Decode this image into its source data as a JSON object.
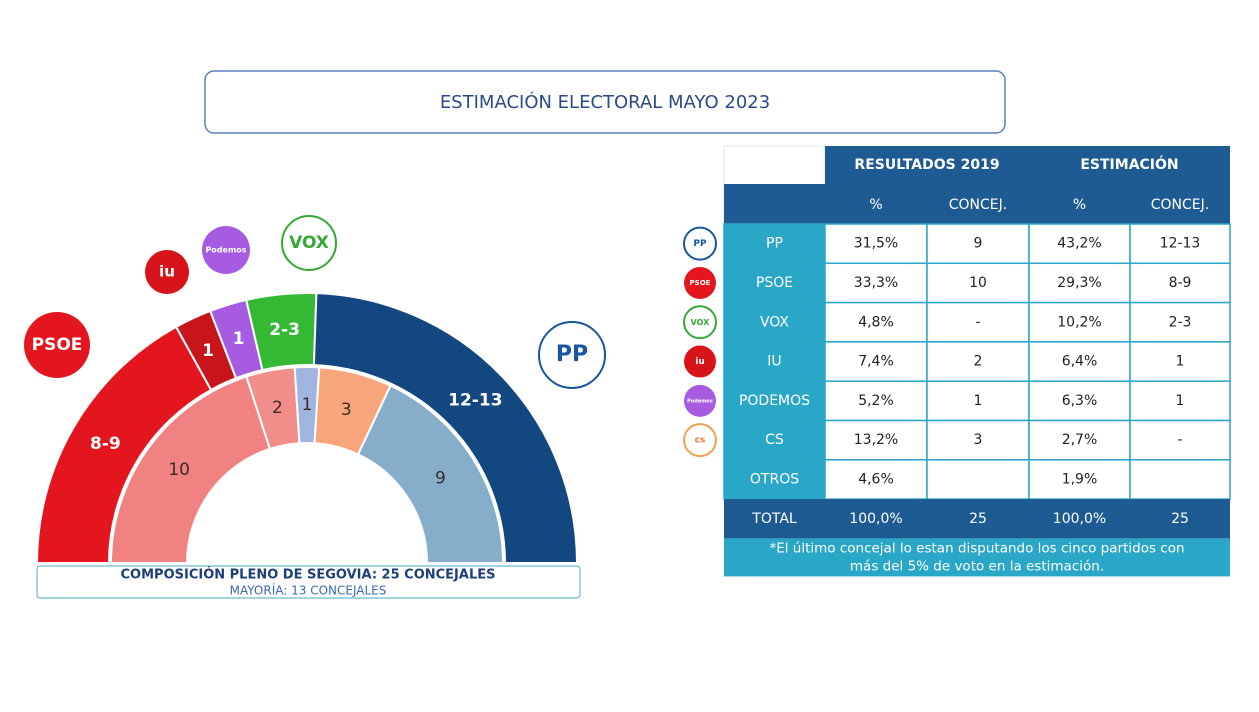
{
  "title": "ESTIMACIÓN ELECTORAL MAYO 2023",
  "logos": {
    "psoe": "PSOE",
    "iu": "iu",
    "podemos": "Podemos",
    "vox": "VOX",
    "pp": "PP",
    "cs": "cs"
  },
  "chart_data": {
    "type": "semicircle",
    "inner": {
      "values": [
        10,
        2,
        1,
        3,
        9
      ],
      "colors": [
        "#f08282",
        "#f28e8a",
        "#9fb5e0",
        "#f7a67c",
        "#86aecb"
      ]
    },
    "outer": {
      "labels": [
        "8-9",
        "1",
        "1",
        "2-3",
        "12-13"
      ],
      "colors": [
        "#e3161f",
        "#c8141b",
        "#a65be0",
        "#35b935",
        "#13477f"
      ]
    },
    "caption": "COMPOSICIÓN PLENO DE SEGOVIA: 25 CONCEJALES",
    "subcaption": "MAYORÍA: 13 CONCEJALES"
  },
  "table": {
    "group_headers": [
      "RESULTADOS 2019",
      "ESTIMACIÓN"
    ],
    "sub_headers": [
      "%",
      "CONCEJ.",
      "%",
      "CONCEJ."
    ],
    "rows": [
      [
        "PP",
        "31,5%",
        "9",
        "43,2%",
        "12-13"
      ],
      [
        "PSOE",
        "33,3%",
        "10",
        "29,3%",
        "8-9"
      ],
      [
        "VOX",
        "4,8%",
        "-",
        "10,2%",
        "2-3"
      ],
      [
        "IU",
        "7,4%",
        "2",
        "6,4%",
        "1"
      ],
      [
        "PODEMOS",
        "5,2%",
        "1",
        "6,3%",
        "1"
      ],
      [
        "CS",
        "13,2%",
        "3",
        "2,7%",
        "-"
      ],
      [
        "OTROS",
        "4,6%",
        null,
        "1,9%",
        null
      ]
    ],
    "total": [
      "TOTAL",
      "100,0%",
      "25",
      "100,0%",
      "25"
    ],
    "note": [
      "*El último concejal lo estan disputando los cinco partidos con",
      "más del 5% de voto en la estimación."
    ]
  }
}
